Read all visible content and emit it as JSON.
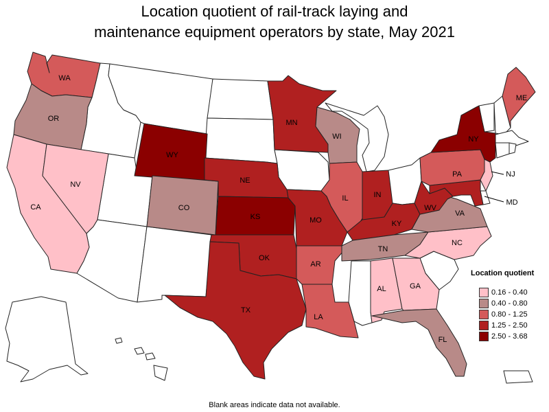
{
  "title": {
    "line1": "Location quotient of rail-track laying and",
    "line2": "maintenance equipment operators by state, May 2021"
  },
  "colors": {
    "blank": "#ffffff",
    "0.16-0.40": "#ffc0c8",
    "0.40-0.80": "#b88a88",
    "0.80-1.25": "#d45a5a",
    "1.25-2.50": "#b02020",
    "2.50-3.68": "#8b0000"
  },
  "legend": {
    "title": "Location quotient",
    "items": [
      {
        "label": "0.16 - 0.40",
        "color": "#ffc0c8"
      },
      {
        "label": "0.40 - 0.80",
        "color": "#b88a88"
      },
      {
        "label": "0.80 - 1.25",
        "color": "#d45a5a"
      },
      {
        "label": "1.25 - 2.50",
        "color": "#b02020"
      },
      {
        "label": "2.50 - 3.68",
        "color": "#8b0000"
      }
    ]
  },
  "states": [
    {
      "abbr": "WA",
      "bin": "0.80-1.25"
    },
    {
      "abbr": "OR",
      "bin": "0.40-0.80"
    },
    {
      "abbr": "CA",
      "bin": "0.16-0.40"
    },
    {
      "abbr": "NV",
      "bin": "0.16-0.40"
    },
    {
      "abbr": "WY",
      "bin": "2.50-3.68"
    },
    {
      "abbr": "CO",
      "bin": "0.40-0.80"
    },
    {
      "abbr": "NE",
      "bin": "1.25-2.50"
    },
    {
      "abbr": "KS",
      "bin": "2.50-3.68"
    },
    {
      "abbr": "OK",
      "bin": "1.25-2.50"
    },
    {
      "abbr": "TX",
      "bin": "1.25-2.50"
    },
    {
      "abbr": "MN",
      "bin": "1.25-2.50"
    },
    {
      "abbr": "WI",
      "bin": "0.40-0.80"
    },
    {
      "abbr": "IL",
      "bin": "0.80-1.25"
    },
    {
      "abbr": "MO",
      "bin": "1.25-2.50"
    },
    {
      "abbr": "AR",
      "bin": "0.80-1.25"
    },
    {
      "abbr": "LA",
      "bin": "0.80-1.25"
    },
    {
      "abbr": "IN",
      "bin": "1.25-2.50"
    },
    {
      "abbr": "KY",
      "bin": "1.25-2.50"
    },
    {
      "abbr": "TN",
      "bin": "0.40-0.80"
    },
    {
      "abbr": "AL",
      "bin": "0.16-0.40"
    },
    {
      "abbr": "GA",
      "bin": "0.16-0.40"
    },
    {
      "abbr": "FL",
      "bin": "0.40-0.80"
    },
    {
      "abbr": "NC",
      "bin": "0.16-0.40"
    },
    {
      "abbr": "VA",
      "bin": "0.40-0.80"
    },
    {
      "abbr": "WV",
      "bin": "1.25-2.50"
    },
    {
      "abbr": "MD",
      "bin": "1.25-2.50"
    },
    {
      "abbr": "PA",
      "bin": "0.80-1.25"
    },
    {
      "abbr": "NY",
      "bin": "2.50-3.68"
    },
    {
      "abbr": "NJ",
      "bin": "0.16-0.40"
    },
    {
      "abbr": "ME",
      "bin": "0.80-1.25"
    }
  ],
  "footnote": "Blank areas indicate data not available."
}
